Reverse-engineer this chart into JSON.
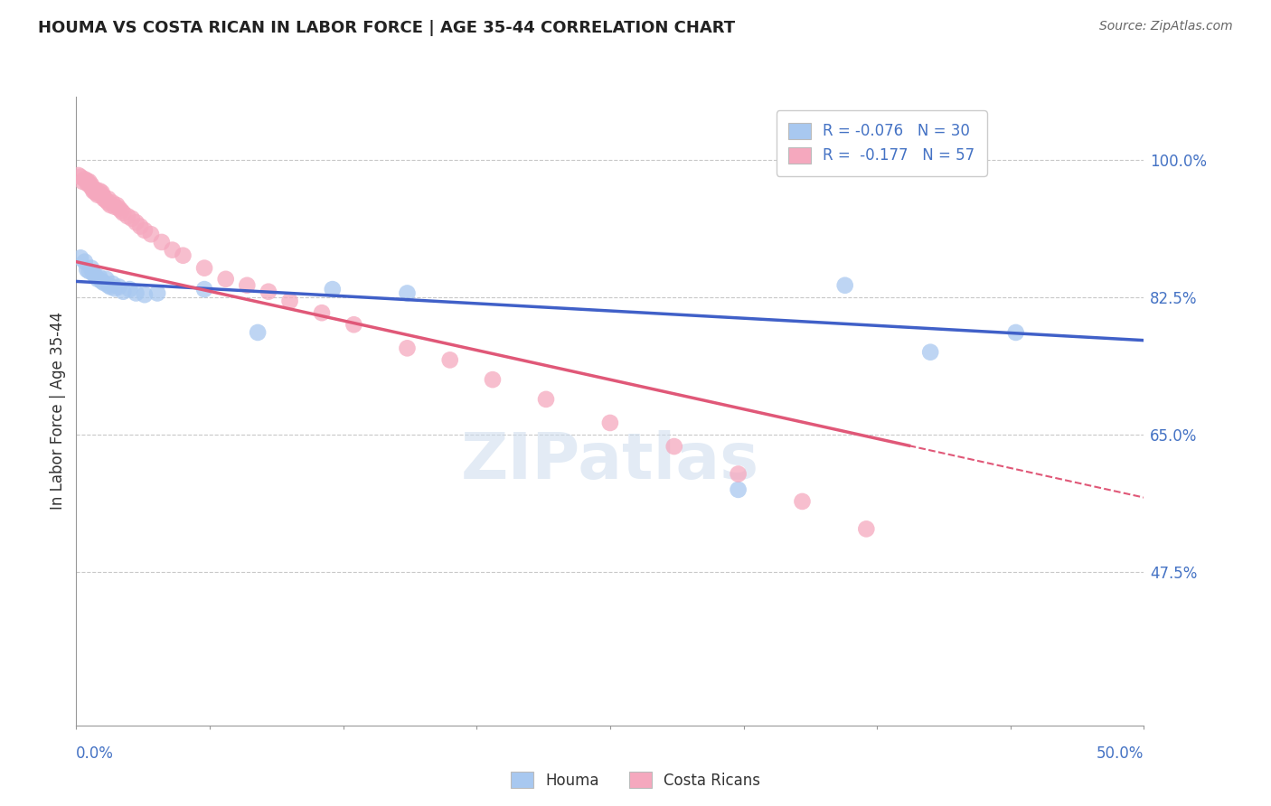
{
  "title": "HOUMA VS COSTA RICAN IN LABOR FORCE | AGE 35-44 CORRELATION CHART",
  "source": "Source: ZipAtlas.com",
  "ylabel": "In Labor Force | Age 35-44",
  "ytick_labels": [
    "100.0%",
    "82.5%",
    "65.0%",
    "47.5%"
  ],
  "ytick_values": [
    1.0,
    0.825,
    0.65,
    0.475
  ],
  "xlim": [
    0.0,
    0.5
  ],
  "ylim": [
    0.28,
    1.08
  ],
  "legend_r_houma": "R = -0.076",
  "legend_n_houma": "N = 30",
  "legend_r_costa": "R =  -0.177",
  "legend_n_costa": "N = 57",
  "houma_color": "#a8c8f0",
  "costa_color": "#f5a8be",
  "trend_houma_color": "#4060c8",
  "trend_costa_color": "#e05878",
  "watermark_text": "ZIPatlas",
  "houma_x": [
    0.002,
    0.004,
    0.005,
    0.006,
    0.007,
    0.008,
    0.009,
    0.01,
    0.011,
    0.012,
    0.013,
    0.014,
    0.015,
    0.016,
    0.017,
    0.018,
    0.02,
    0.022,
    0.025,
    0.028,
    0.032,
    0.038,
    0.06,
    0.085,
    0.12,
    0.155,
    0.31,
    0.36,
    0.4,
    0.44
  ],
  "houma_y": [
    0.875,
    0.87,
    0.86,
    0.858,
    0.862,
    0.855,
    0.852,
    0.848,
    0.85,
    0.845,
    0.843,
    0.848,
    0.84,
    0.838,
    0.842,
    0.836,
    0.838,
    0.832,
    0.835,
    0.83,
    0.828,
    0.83,
    0.835,
    0.78,
    0.835,
    0.83,
    0.58,
    0.84,
    0.755,
    0.78
  ],
  "costa_x": [
    0.001,
    0.002,
    0.003,
    0.004,
    0.005,
    0.005,
    0.006,
    0.006,
    0.007,
    0.007,
    0.008,
    0.008,
    0.009,
    0.009,
    0.01,
    0.01,
    0.011,
    0.011,
    0.012,
    0.012,
    0.013,
    0.013,
    0.014,
    0.015,
    0.015,
    0.016,
    0.017,
    0.018,
    0.019,
    0.02,
    0.021,
    0.022,
    0.024,
    0.026,
    0.028,
    0.03,
    0.032,
    0.035,
    0.04,
    0.045,
    0.05,
    0.06,
    0.07,
    0.08,
    0.09,
    0.1,
    0.115,
    0.13,
    0.155,
    0.175,
    0.195,
    0.22,
    0.25,
    0.28,
    0.31,
    0.34,
    0.37
  ],
  "costa_y": [
    0.98,
    0.978,
    0.972,
    0.975,
    0.973,
    0.97,
    0.968,
    0.972,
    0.965,
    0.968,
    0.962,
    0.96,
    0.958,
    0.962,
    0.955,
    0.958,
    0.96,
    0.956,
    0.955,
    0.958,
    0.952,
    0.95,
    0.948,
    0.945,
    0.95,
    0.942,
    0.945,
    0.94,
    0.942,
    0.938,
    0.935,
    0.932,
    0.928,
    0.925,
    0.92,
    0.915,
    0.91,
    0.905,
    0.895,
    0.885,
    0.878,
    0.862,
    0.848,
    0.84,
    0.832,
    0.82,
    0.805,
    0.79,
    0.76,
    0.745,
    0.72,
    0.695,
    0.665,
    0.635,
    0.6,
    0.565,
    0.53
  ],
  "trend_houma_x0": 0.0,
  "trend_houma_x1": 0.5,
  "trend_houma_y0": 0.845,
  "trend_houma_y1": 0.77,
  "trend_costa_x0": 0.0,
  "trend_costa_x1": 0.5,
  "trend_costa_y0": 0.87,
  "trend_costa_y1": 0.57,
  "trend_costa_solid_end": 0.39
}
